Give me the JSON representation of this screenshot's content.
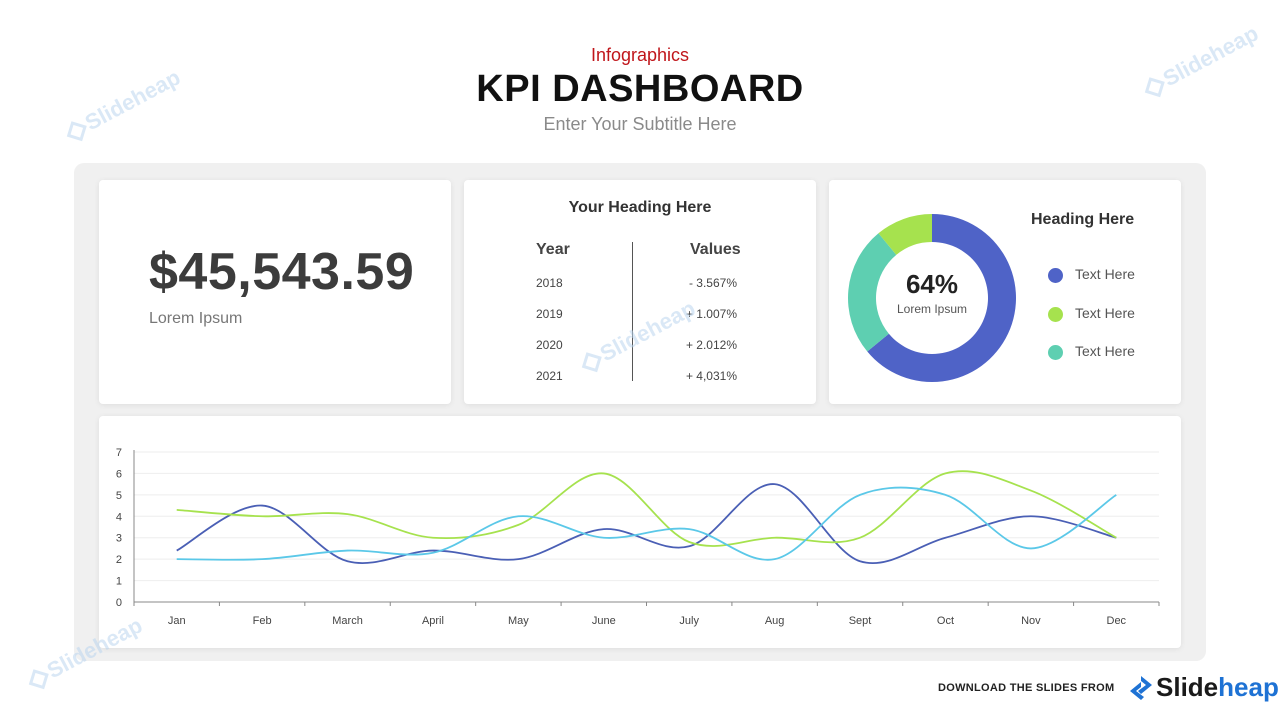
{
  "header": {
    "label": "Infographics",
    "title": "KPI DASHBOARD",
    "subtitle": "Enter Your Subtitle Here"
  },
  "kpi_card": {
    "value": "$45,543.59",
    "caption": "Lorem Ipsum"
  },
  "table_card": {
    "heading": "Your Heading Here",
    "columns": [
      "Year",
      "Values"
    ],
    "rows": [
      {
        "year": "2018",
        "value": "- 3.567%"
      },
      {
        "year": "2019",
        "value": "+ 1.007%"
      },
      {
        "year": "2020",
        "value": "+ 2.012%"
      },
      {
        "year": "2021",
        "value": "+ 4,031%"
      }
    ]
  },
  "donut_card": {
    "heading": "Heading Here",
    "center_value": "64%",
    "center_caption": "Lorem Ipsum",
    "legend": [
      {
        "label": "Text Here",
        "color": "#4f63c7"
      },
      {
        "label": "Text Here",
        "color": "#a6e24e"
      },
      {
        "label": "Text Here",
        "color": "#5ecfb1"
      }
    ]
  },
  "watermark": "Slideheap",
  "footer": {
    "text": "DOWNLOAD THE SLIDES FROM",
    "brand_a": "Slide",
    "brand_b": "heap"
  },
  "chart_data": [
    {
      "type": "pie",
      "donut": true,
      "values": [
        64,
        25,
        11
      ],
      "colors": [
        "#4f63c7",
        "#5ecfb1",
        "#a6e24e"
      ],
      "center_label": "64%"
    },
    {
      "type": "line",
      "smooth": true,
      "categories": [
        "Jan",
        "Feb",
        "March",
        "April",
        "May",
        "June",
        "July",
        "Aug",
        "Sept",
        "Oct",
        "Nov",
        "Dec"
      ],
      "ylim": [
        0,
        7
      ],
      "yticks": [
        0,
        1,
        2,
        3,
        4,
        5,
        6,
        7
      ],
      "grid": true,
      "series": [
        {
          "color": "#4a5fb5",
          "values": [
            2.4,
            4.5,
            1.9,
            2.4,
            2.0,
            3.4,
            2.6,
            5.5,
            1.9,
            3.0,
            4.0,
            3.0
          ]
        },
        {
          "color": "#a6e24e",
          "values": [
            4.3,
            4.0,
            4.1,
            3.0,
            3.6,
            6.0,
            2.8,
            3.0,
            3.0,
            6.0,
            5.2,
            3.0
          ]
        },
        {
          "color": "#5bc8e8",
          "values": [
            2.0,
            2.0,
            2.4,
            2.3,
            4.0,
            3.0,
            3.4,
            2.0,
            5.0,
            5.0,
            2.5,
            5.0
          ]
        }
      ]
    }
  ]
}
